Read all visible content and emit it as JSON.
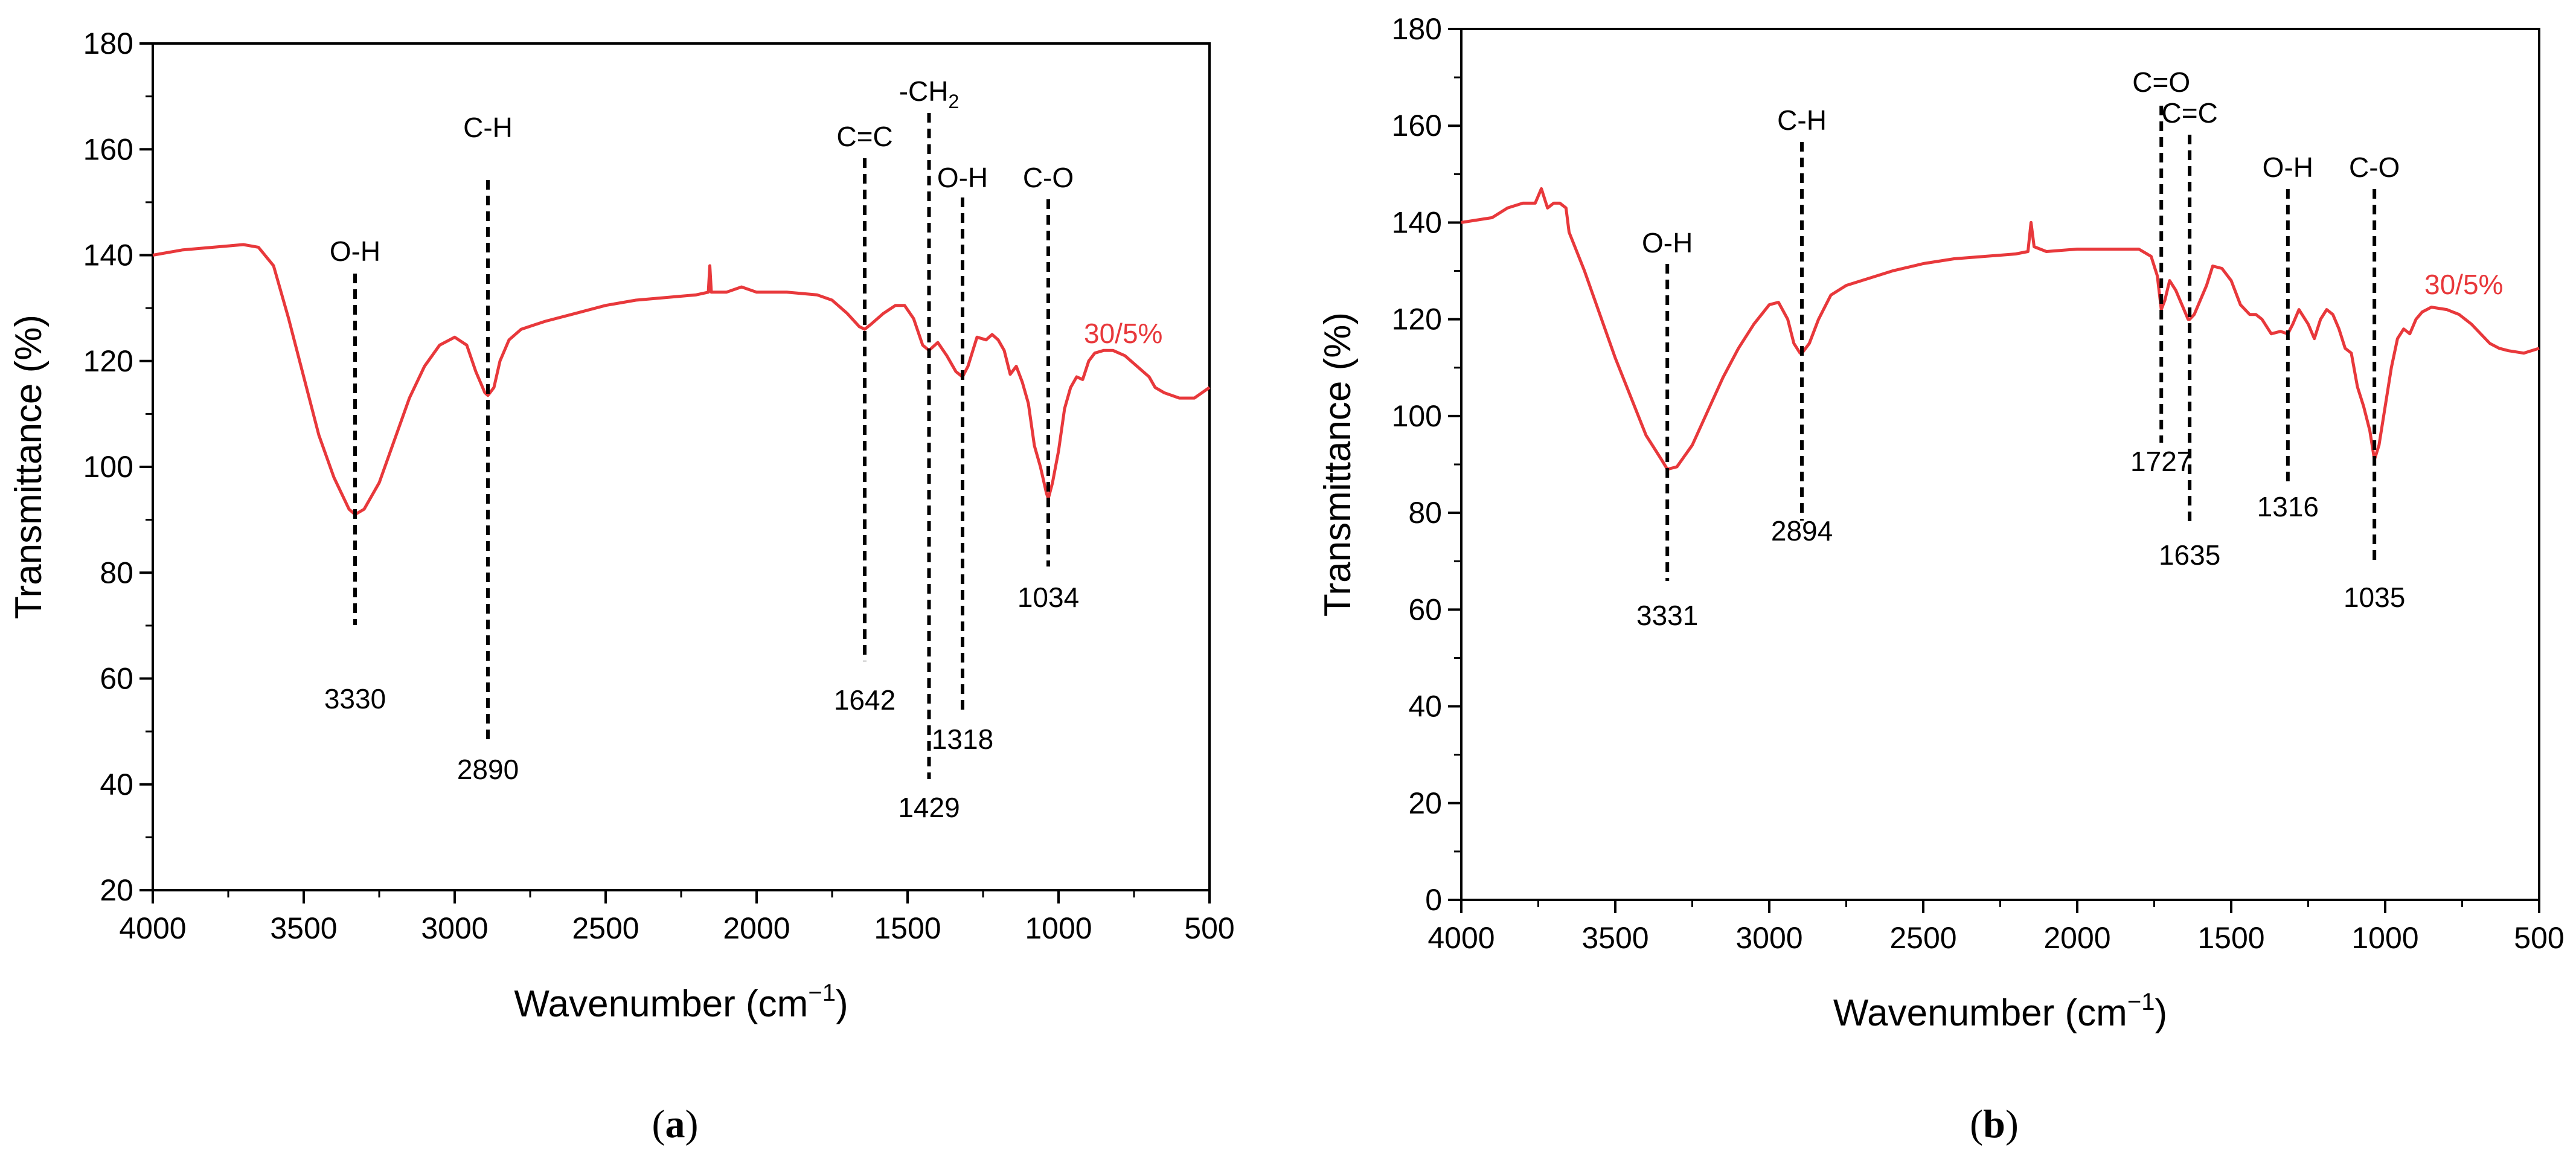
{
  "chart_data": [
    {
      "type": "line",
      "panel_label": "a",
      "xlabel": "Wavenumber (cm",
      "xlabel_sup": "−1",
      "xlabel_close": ")",
      "ylabel": "Transmittance (%)",
      "xlim": [
        4000,
        500
      ],
      "ylim": [
        20,
        180
      ],
      "xticks": [
        4000,
        3500,
        3000,
        2500,
        2000,
        1500,
        1000,
        500
      ],
      "yticks": [
        20,
        40,
        60,
        80,
        100,
        120,
        140,
        160,
        180
      ],
      "grid": false,
      "series": [
        {
          "name": "30/5%",
          "color": "#e8383b",
          "points": [
            [
              4000,
              140
            ],
            [
              3900,
              141
            ],
            [
              3800,
              141.5
            ],
            [
              3700,
              142
            ],
            [
              3650,
              141.5
            ],
            [
              3600,
              138
            ],
            [
              3550,
              128
            ],
            [
              3500,
              117
            ],
            [
              3450,
              106
            ],
            [
              3400,
              98
            ],
            [
              3350,
              92
            ],
            [
              3330,
              91
            ],
            [
              3300,
              92
            ],
            [
              3250,
              97
            ],
            [
              3200,
              105
            ],
            [
              3150,
              113
            ],
            [
              3100,
              119
            ],
            [
              3050,
              123
            ],
            [
              3000,
              124.5
            ],
            [
              2960,
              123
            ],
            [
              2930,
              118
            ],
            [
              2900,
              114
            ],
            [
              2890,
              113.5
            ],
            [
              2870,
              115
            ],
            [
              2850,
              120
            ],
            [
              2820,
              124
            ],
            [
              2780,
              126
            ],
            [
              2700,
              127.5
            ],
            [
              2600,
              129
            ],
            [
              2500,
              130.5
            ],
            [
              2400,
              131.5
            ],
            [
              2300,
              132
            ],
            [
              2200,
              132.5
            ],
            [
              2160,
              133
            ],
            [
              2155,
              138
            ],
            [
              2150,
              133
            ],
            [
              2100,
              133
            ],
            [
              2050,
              134
            ],
            [
              2000,
              133
            ],
            [
              1900,
              133
            ],
            [
              1800,
              132.5
            ],
            [
              1750,
              131.5
            ],
            [
              1700,
              129
            ],
            [
              1660,
              126.5
            ],
            [
              1642,
              126
            ],
            [
              1620,
              127
            ],
            [
              1580,
              129
            ],
            [
              1540,
              130.5
            ],
            [
              1510,
              130.5
            ],
            [
              1480,
              128
            ],
            [
              1450,
              123
            ],
            [
              1429,
              122
            ],
            [
              1400,
              123.5
            ],
            [
              1370,
              121
            ],
            [
              1340,
              118
            ],
            [
              1318,
              117
            ],
            [
              1300,
              119
            ],
            [
              1270,
              124.5
            ],
            [
              1240,
              124
            ],
            [
              1220,
              125
            ],
            [
              1200,
              124
            ],
            [
              1180,
              122
            ],
            [
              1160,
              117.5
            ],
            [
              1140,
              119
            ],
            [
              1120,
              116
            ],
            [
              1100,
              112
            ],
            [
              1080,
              104
            ],
            [
              1060,
              100
            ],
            [
              1040,
              95
            ],
            [
              1034,
              94
            ],
            [
              1020,
              97
            ],
            [
              1000,
              103
            ],
            [
              980,
              111
            ],
            [
              960,
              115
            ],
            [
              940,
              117
            ],
            [
              920,
              116.5
            ],
            [
              900,
              120
            ],
            [
              880,
              121.5
            ],
            [
              850,
              122
            ],
            [
              820,
              122
            ],
            [
              780,
              121
            ],
            [
              740,
              119
            ],
            [
              700,
              117
            ],
            [
              680,
              115
            ],
            [
              650,
              114
            ],
            [
              600,
              113
            ],
            [
              550,
              113
            ],
            [
              500,
              115
            ]
          ]
        }
      ],
      "series_label": "30/5%",
      "annotations": [
        {
          "x": 3330,
          "group": "O-H",
          "wavenumber": "3330"
        },
        {
          "x": 2890,
          "group": "C-H",
          "wavenumber": "2890"
        },
        {
          "x": 1642,
          "group": "C=C",
          "wavenumber": "1642"
        },
        {
          "x": 1429,
          "group": "-CH",
          "group_sub": "2",
          "wavenumber": "1429"
        },
        {
          "x": 1318,
          "group": "O-H",
          "wavenumber": "1318"
        },
        {
          "x": 1034,
          "group": "C-O",
          "wavenumber": "1034"
        }
      ]
    },
    {
      "type": "line",
      "panel_label": "b",
      "xlabel": "Wavenumber (cm",
      "xlabel_sup": "−1",
      "xlabel_close": ")",
      "ylabel": "Transmittance (%)",
      "xlim": [
        4000,
        500
      ],
      "ylim": [
        0,
        180
      ],
      "xticks": [
        4000,
        3500,
        3000,
        2500,
        2000,
        1500,
        1000,
        500
      ],
      "yticks": [
        0,
        20,
        40,
        60,
        80,
        100,
        120,
        140,
        160,
        180
      ],
      "grid": false,
      "series": [
        {
          "name": "30/5%",
          "color": "#e8383b",
          "points": [
            [
              4000,
              140
            ],
            [
              3900,
              141
            ],
            [
              3850,
              143
            ],
            [
              3800,
              144
            ],
            [
              3760,
              144
            ],
            [
              3740,
              147
            ],
            [
              3720,
              143
            ],
            [
              3700,
              144
            ],
            [
              3680,
              144
            ],
            [
              3660,
              143
            ],
            [
              3650,
              138
            ],
            [
              3600,
              130
            ],
            [
              3550,
              121
            ],
            [
              3500,
              112
            ],
            [
              3450,
              104
            ],
            [
              3400,
              96
            ],
            [
              3350,
              91
            ],
            [
              3331,
              89
            ],
            [
              3300,
              89.5
            ],
            [
              3250,
              94
            ],
            [
              3200,
              101
            ],
            [
              3150,
              108
            ],
            [
              3100,
              114
            ],
            [
              3050,
              119
            ],
            [
              3000,
              123
            ],
            [
              2970,
              123.5
            ],
            [
              2940,
              120
            ],
            [
              2920,
              115
            ],
            [
              2900,
              113
            ],
            [
              2894,
              113
            ],
            [
              2870,
              115
            ],
            [
              2840,
              120
            ],
            [
              2800,
              125
            ],
            [
              2750,
              127
            ],
            [
              2700,
              128
            ],
            [
              2600,
              130
            ],
            [
              2500,
              131.5
            ],
            [
              2400,
              132.5
            ],
            [
              2300,
              133
            ],
            [
              2200,
              133.5
            ],
            [
              2160,
              134
            ],
            [
              2150,
              140
            ],
            [
              2140,
              135
            ],
            [
              2100,
              134
            ],
            [
              2000,
              134.5
            ],
            [
              1900,
              134.5
            ],
            [
              1800,
              134.5
            ],
            [
              1760,
              133
            ],
            [
              1740,
              129
            ],
            [
              1727,
              122
            ],
            [
              1715,
              124
            ],
            [
              1700,
              128
            ],
            [
              1680,
              126
            ],
            [
              1660,
              123
            ],
            [
              1640,
              120
            ],
            [
              1635,
              120
            ],
            [
              1620,
              121
            ],
            [
              1600,
              124
            ],
            [
              1580,
              127
            ],
            [
              1560,
              131
            ],
            [
              1530,
              130.5
            ],
            [
              1500,
              128
            ],
            [
              1470,
              123
            ],
            [
              1440,
              121
            ],
            [
              1420,
              121
            ],
            [
              1400,
              120
            ],
            [
              1370,
              117
            ],
            [
              1340,
              117.5
            ],
            [
              1316,
              117
            ],
            [
              1300,
              119
            ],
            [
              1280,
              122
            ],
            [
              1250,
              119
            ],
            [
              1230,
              116
            ],
            [
              1210,
              120
            ],
            [
              1190,
              122
            ],
            [
              1170,
              121
            ],
            [
              1150,
              118
            ],
            [
              1130,
              114
            ],
            [
              1110,
              113
            ],
            [
              1090,
              106
            ],
            [
              1070,
              102
            ],
            [
              1050,
              97
            ],
            [
              1035,
              91
            ],
            [
              1020,
              94
            ],
            [
              1000,
              102
            ],
            [
              980,
              110
            ],
            [
              960,
              116
            ],
            [
              940,
              118
            ],
            [
              920,
              117
            ],
            [
              900,
              120
            ],
            [
              880,
              121.5
            ],
            [
              850,
              122.5
            ],
            [
              800,
              122
            ],
            [
              760,
              121
            ],
            [
              720,
              119
            ],
            [
              690,
              117
            ],
            [
              660,
              115
            ],
            [
              630,
              114
            ],
            [
              600,
              113.5
            ],
            [
              550,
              113
            ],
            [
              500,
              114
            ]
          ]
        }
      ],
      "series_label": "30/5%",
      "annotations": [
        {
          "x": 3331,
          "group": "O-H",
          "wavenumber": "3331"
        },
        {
          "x": 2894,
          "group": "C-H",
          "wavenumber": "2894"
        },
        {
          "x": 1727,
          "group": "C=O",
          "wavenumber": "1727"
        },
        {
          "x": 1635,
          "group": "C=C",
          "wavenumber": "1635"
        },
        {
          "x": 1316,
          "group": "O-H",
          "wavenumber": "1316"
        },
        {
          "x": 1035,
          "group": "C-O",
          "wavenumber": "1035"
        }
      ]
    }
  ]
}
